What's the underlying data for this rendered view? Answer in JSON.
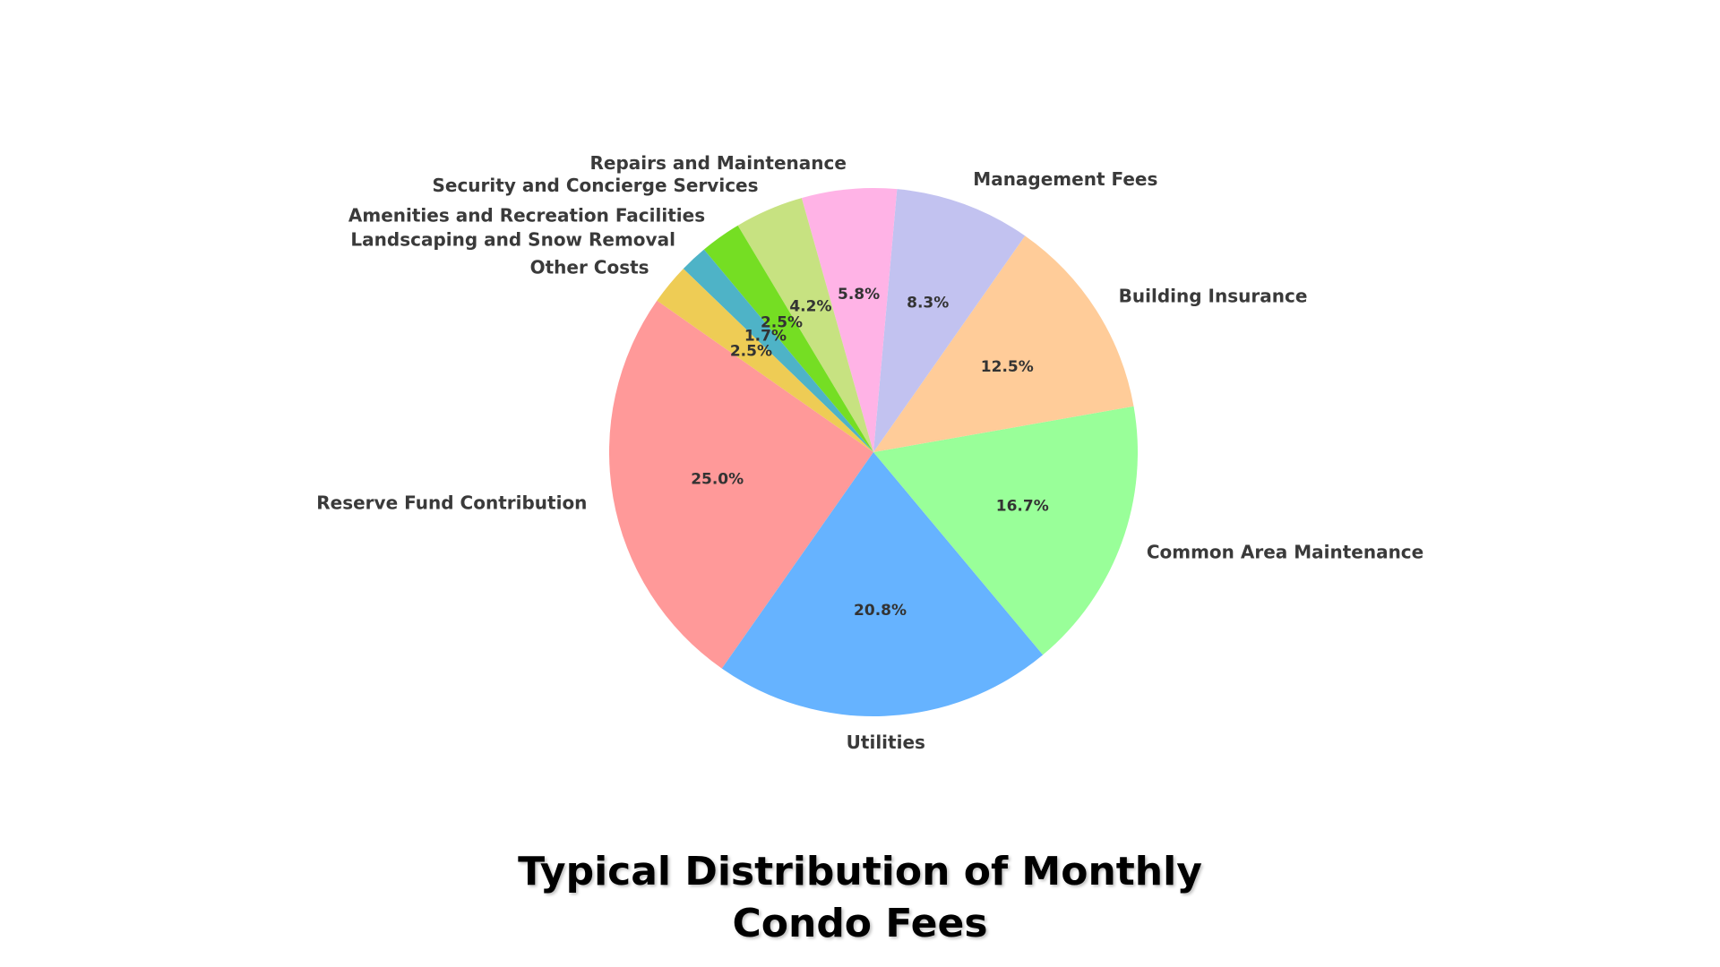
{
  "chart_data": {
    "type": "pie",
    "title": "Typical Distribution of Monthly\nCondo Fees",
    "slices": [
      {
        "label": "Reserve Fund Contribution",
        "value": 25.0,
        "pct_text": "25.0%",
        "color": "#FF9999"
      },
      {
        "label": "Utilities",
        "value": 20.8,
        "pct_text": "20.8%",
        "color": "#66B3FF"
      },
      {
        "label": "Common Area Maintenance",
        "value": 16.7,
        "pct_text": "16.7%",
        "color": "#99FF99"
      },
      {
        "label": "Building Insurance",
        "value": 12.5,
        "pct_text": "12.5%",
        "color": "#FFCC99"
      },
      {
        "label": "Management Fees",
        "value": 8.3,
        "pct_text": "8.3%",
        "color": "#C2C2F0"
      },
      {
        "label": "Repairs and Maintenance",
        "value": 5.8,
        "pct_text": "5.8%",
        "color": "#FFB3E6"
      },
      {
        "label": "Security and Concierge Services",
        "value": 4.2,
        "pct_text": "4.2%",
        "color": "#C7E281"
      },
      {
        "label": "Amenities and Recreation Facilities",
        "value": 2.5,
        "pct_text": "2.5%",
        "color": "#75DE23"
      },
      {
        "label": "Landscaping and Snow Removal",
        "value": 1.7,
        "pct_text": "1.7%",
        "color": "#4EB3C7"
      },
      {
        "label": "Other Costs",
        "value": 2.5,
        "pct_text": "2.5%",
        "color": "#EECC55"
      }
    ],
    "start_angle_deg": 145,
    "direction": "counterclockwise",
    "legend": "none"
  }
}
